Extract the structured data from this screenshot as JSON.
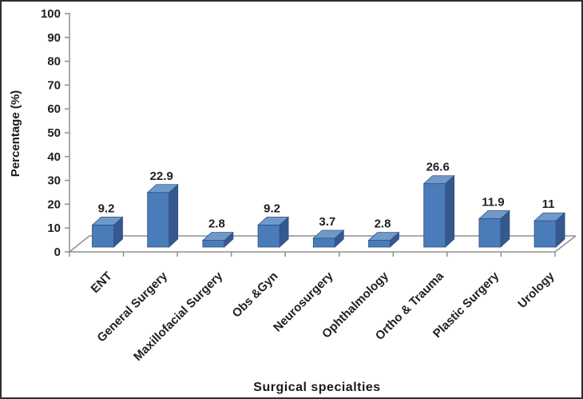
{
  "chart_data": {
    "type": "bar",
    "variant": "3d-column",
    "title": "",
    "categories": [
      "ENT",
      "General Surgery",
      "Maxillofacial Surgery",
      "Obs &Gyn",
      "Neurosurgery",
      "Ophthalmology",
      "Ortho & Trauma",
      "Plastic Surgery",
      "Urology"
    ],
    "values": [
      9.2,
      22.9,
      2.8,
      9.2,
      3.7,
      2.8,
      26.6,
      11.9,
      11
    ],
    "data_labels": [
      "9.2",
      "22.9",
      "2.8",
      "9.2",
      "3.7",
      "2.8",
      "26.6",
      "11.9",
      "11"
    ],
    "xlabel": "Surgical  specialties",
    "ylabel": "Percentage (%)",
    "ylim": [
      0,
      100
    ],
    "ytick_step": 10,
    "yticks": [
      "0",
      "10",
      "20",
      "30",
      "40",
      "50",
      "60",
      "70",
      "80",
      "90",
      "100"
    ],
    "grid": false,
    "legend": false,
    "colors": {
      "bar_front": "#4a7cba",
      "bar_top": "#7099cb",
      "bar_side": "#35598e",
      "bar_outline": "#2f5180",
      "axis_line": "#8f8f8f",
      "text": "#202020",
      "border": "#2e2e2e",
      "background": "#ffffff"
    }
  }
}
